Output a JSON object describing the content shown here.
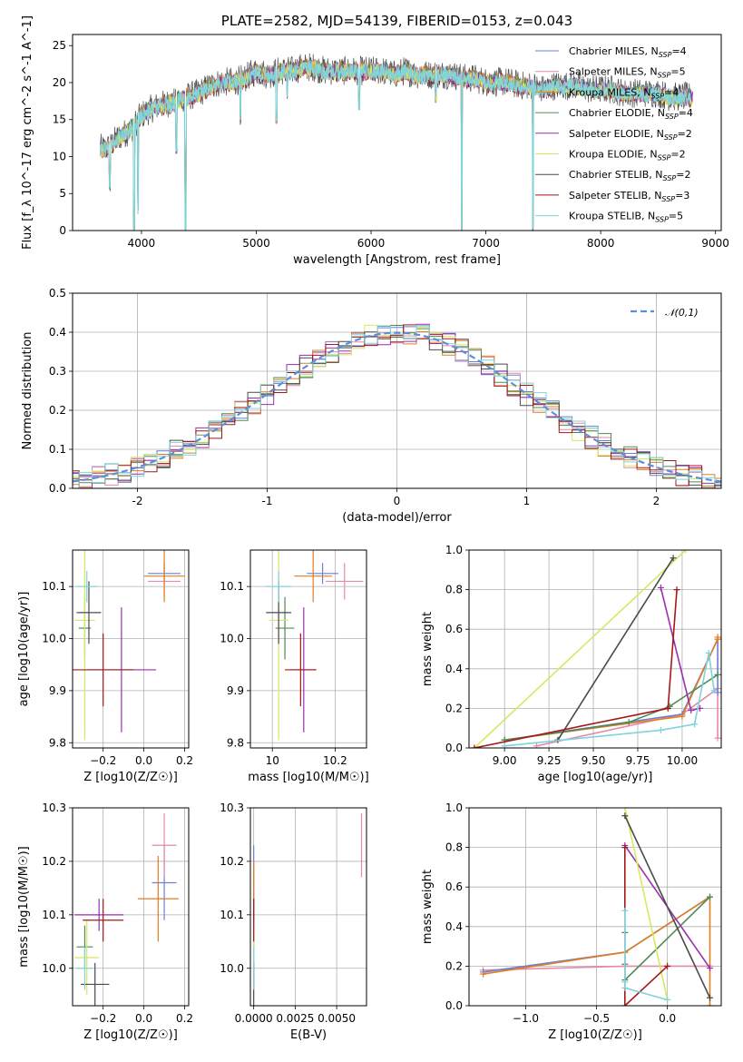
{
  "chart_data": [
    {
      "id": "spectrum",
      "type": "line",
      "title": "PLATE=2582, MJD=54139, FIBERID=0153, z=0.043",
      "xlabel": "wavelength [Angstrom, rest frame]",
      "ylabel": "Flux [f_λ 10^-17 erg cm^-2 s^-1 A^-1]",
      "xlim": [
        3400,
        9050
      ],
      "ylim": [
        0,
        26.5
      ],
      "xticks": [
        4000,
        5000,
        6000,
        7000,
        8000,
        9000
      ],
      "yticks": [
        0,
        5,
        10,
        15,
        20,
        25
      ],
      "grid": false,
      "legend_position": "upper-right",
      "legend": [
        {
          "name": "Chabrier MILES, N_SSP=4",
          "color": "#6a7fd1"
        },
        {
          "name": "Salpeter MILES, N_SSP=5",
          "color": "#e58aa8"
        },
        {
          "name": "Kroupa MILES, N_SSP=4",
          "color": "#e07d20"
        },
        {
          "name": "Chabrier ELODIE, N_SSP=4",
          "color": "#4f8a5a"
        },
        {
          "name": "Salpeter ELODIE, N_SSP=2",
          "color": "#9b2fae"
        },
        {
          "name": "Kroupa ELODIE, N_SSP=2",
          "color": "#d7e860"
        },
        {
          "name": "Chabrier STELIB, N_SSP=2",
          "color": "#4a4a4a"
        },
        {
          "name": "Salpeter STELIB, N_SSP=3",
          "color": "#a51818"
        },
        {
          "name": "Kroupa STELIB, N_SSP=5",
          "color": "#7fd3da"
        }
      ],
      "continuum": {
        "x": [
          3640,
          3700,
          3800,
          3900,
          4000,
          4100,
          4200,
          4300,
          4400,
          4500,
          4600,
          4700,
          4800,
          4900,
          5000,
          5100,
          5200,
          5300,
          5400,
          5500,
          5600,
          5700,
          5800,
          5900,
          6000,
          6100,
          6200,
          6300,
          6400,
          6500,
          6600,
          6700,
          6800,
          6900,
          7000,
          7100,
          7200,
          7300,
          7400,
          7500,
          7600,
          7700,
          7800,
          7900,
          8000,
          8100,
          8200,
          8300,
          8400,
          8500,
          8600,
          8700,
          8800
        ],
        "y": [
          11,
          11,
          12.5,
          13.5,
          15.5,
          16.5,
          17,
          17.5,
          18,
          18.5,
          19.5,
          20,
          20,
          20.5,
          21.5,
          21,
          21.5,
          21.5,
          22,
          22,
          21.5,
          21.5,
          21.5,
          21.5,
          21.5,
          21.5,
          21,
          21.5,
          21,
          21,
          21,
          21,
          20.5,
          20.5,
          20,
          20,
          20,
          19.5,
          19.5,
          19,
          19.5,
          19.5,
          19.5,
          19,
          19,
          19,
          18.5,
          18.5,
          18.5,
          18.5,
          18,
          18,
          18
        ]
      },
      "absorption_dips": [
        {
          "x": 3725,
          "y": 6
        },
        {
          "x": 3935,
          "y": 0
        },
        {
          "x": 3970,
          "y": 3
        },
        {
          "x": 4305,
          "y": 11
        },
        {
          "x": 4385,
          "y": 0
        },
        {
          "x": 4862,
          "y": 15
        },
        {
          "x": 5175,
          "y": 15
        },
        {
          "x": 5270,
          "y": 18.5
        },
        {
          "x": 5895,
          "y": 17
        },
        {
          "x": 6564,
          "y": 18
        },
        {
          "x": 6790,
          "y": 0
        },
        {
          "x": 7410,
          "y": 0
        }
      ]
    },
    {
      "id": "residual-histogram",
      "type": "line",
      "xlabel": "(data-model)/error",
      "ylabel": "Normed distribution",
      "xlim": [
        -2.5,
        2.5
      ],
      "ylim": [
        0,
        0.5
      ],
      "xticks": [
        -2,
        -1,
        0,
        1,
        2
      ],
      "yticks": [
        0.0,
        0.1,
        0.2,
        0.3,
        0.4,
        0.5
      ],
      "grid": true,
      "legend": [
        {
          "name": "𝒩(0,1)",
          "color": "#5b8fd8"
        }
      ],
      "legend_position": "upper-right",
      "bin_width": 0.1,
      "series_colors": [
        "#6a7fd1",
        "#e58aa8",
        "#e07d20",
        "#4f8a5a",
        "#9b2fae",
        "#d7e860",
        "#4a4a4a",
        "#a51818",
        "#7fd3da"
      ]
    },
    {
      "id": "age-vs-Z",
      "type": "scatter",
      "xlabel": "Z [log10(Z/Z☉)]",
      "ylabel": "age [log10(age/yr)]",
      "xlim": [
        -0.35,
        0.22
      ],
      "ylim": [
        9.79,
        10.17
      ],
      "xticks": [
        -0.2,
        0.0,
        0.2
      ],
      "xtick_labels": [
        "−0.2",
        "0.0",
        "0.2"
      ],
      "yticks": [
        9.8,
        9.9,
        10.0,
        10.1
      ],
      "grid": true,
      "points": [
        {
          "x": 0.1,
          "y": 10.125,
          "xerr": 0.08,
          "yerr": 0.02,
          "color": "#6a7fd1"
        },
        {
          "x": 0.1,
          "y": 10.11,
          "xerr": 0.08,
          "yerr": 0.035,
          "color": "#e58aa8"
        },
        {
          "x": 0.1,
          "y": 10.12,
          "xerr": 0.1,
          "yerr": 0.05,
          "color": "#e07d20"
        },
        {
          "x": -0.29,
          "y": 10.02,
          "xerr": 0.03,
          "yerr": 0.06,
          "color": "#4f8a5a"
        },
        {
          "x": -0.11,
          "y": 9.94,
          "xerr": 0.17,
          "yerr": 0.12,
          "color": "#9b2fae"
        },
        {
          "x": -0.29,
          "y": 10.035,
          "xerr": 0.05,
          "yerr": 0.23,
          "color": "#d7e860"
        },
        {
          "x": -0.27,
          "y": 10.05,
          "xerr": 0.06,
          "yerr": 0.06,
          "color": "#4a4a4a"
        },
        {
          "x": -0.2,
          "y": 9.94,
          "xerr": 0.15,
          "yerr": 0.07,
          "color": "#a51818"
        },
        {
          "x": -0.28,
          "y": 10.1,
          "xerr": 0.05,
          "yerr": 0.03,
          "color": "#7fd3da"
        }
      ]
    },
    {
      "id": "age-vs-mass",
      "type": "scatter",
      "xlabel": "mass [log10(M/M☉)]",
      "xlim": [
        9.93,
        10.3
      ],
      "ylim": [
        9.79,
        10.17
      ],
      "xticks": [
        10.0,
        10.2
      ],
      "yticks": [
        9.8,
        9.9,
        10.0,
        10.1
      ],
      "grid": true,
      "points": [
        {
          "x": 10.16,
          "y": 10.125,
          "xerr": 0.05,
          "yerr": 0.02,
          "color": "#6a7fd1"
        },
        {
          "x": 10.23,
          "y": 10.11,
          "xerr": 0.06,
          "yerr": 0.035,
          "color": "#e58aa8"
        },
        {
          "x": 10.13,
          "y": 10.12,
          "xerr": 0.06,
          "yerr": 0.05,
          "color": "#e07d20"
        },
        {
          "x": 10.04,
          "y": 10.02,
          "xerr": 0.03,
          "yerr": 0.06,
          "color": "#4f8a5a"
        },
        {
          "x": 10.1,
          "y": 9.94,
          "xerr": 0.04,
          "yerr": 0.12,
          "color": "#9b2fae"
        },
        {
          "x": 10.02,
          "y": 10.035,
          "xerr": 0.03,
          "yerr": 0.23,
          "color": "#d7e860"
        },
        {
          "x": 10.02,
          "y": 10.05,
          "xerr": 0.04,
          "yerr": 0.06,
          "color": "#4a4a4a"
        },
        {
          "x": 10.09,
          "y": 9.94,
          "xerr": 0.05,
          "yerr": 0.07,
          "color": "#a51818"
        },
        {
          "x": 10.02,
          "y": 10.1,
          "xerr": 0.04,
          "yerr": 0.03,
          "color": "#7fd3da"
        }
      ]
    },
    {
      "id": "massweight-vs-age",
      "type": "line",
      "xlabel": "age [log10(age/yr)]",
      "ylabel": "mass weight",
      "xlim": [
        8.8,
        10.22
      ],
      "ylim": [
        0.0,
        1.0
      ],
      "xticks": [
        9.0,
        9.25,
        9.5,
        9.75,
        10.0
      ],
      "xtick_labels": [
        "9.00",
        "9.25",
        "9.50",
        "9.75",
        "10.00"
      ],
      "yticks": [
        0.0,
        0.2,
        0.4,
        0.6,
        0.8,
        1.0
      ],
      "grid": true,
      "series": [
        {
          "color": "#e58aa8",
          "x": [
            9.18,
            10.0,
            10.2,
            10.2
          ],
          "y": [
            0.01,
            0.17,
            0.3,
            0.05
          ]
        },
        {
          "color": "#6a7fd1",
          "x": [
            9.0,
            10.0,
            10.2,
            10.2
          ],
          "y": [
            0.04,
            0.17,
            0.55,
            0.28
          ]
        },
        {
          "color": "#e07d20",
          "x": [
            9.0,
            10.0,
            10.2,
            10.2
          ],
          "y": [
            0.04,
            0.16,
            0.55,
            0.56
          ]
        },
        {
          "color": "#4f8a5a",
          "x": [
            9.0,
            9.7,
            9.93,
            10.2
          ],
          "y": [
            0.04,
            0.13,
            0.21,
            0.37
          ]
        },
        {
          "color": "#9b2fae",
          "x": [
            9.88,
            10.05,
            10.1
          ],
          "y": [
            0.81,
            0.19,
            0.2
          ]
        },
        {
          "color": "#d7e860",
          "x": [
            8.83,
            10.02
          ],
          "y": [
            0.0,
            1.0
          ]
        },
        {
          "color": "#4a4a4a",
          "x": [
            9.3,
            9.95
          ],
          "y": [
            0.04,
            0.96
          ]
        },
        {
          "color": "#a51818",
          "x": [
            8.83,
            9.92,
            9.97
          ],
          "y": [
            0.0,
            0.2,
            0.8
          ]
        },
        {
          "color": "#7fd3da",
          "x": [
            9.0,
            9.88,
            10.07,
            10.15,
            10.18
          ],
          "y": [
            0.01,
            0.09,
            0.12,
            0.48,
            0.29
          ]
        }
      ]
    },
    {
      "id": "mass-vs-Z",
      "type": "scatter",
      "xlabel": "Z [log10(Z/Z☉)]",
      "ylabel": "mass [log10(M/M☉)]",
      "xlim": [
        -0.35,
        0.22
      ],
      "ylim": [
        9.93,
        10.3
      ],
      "xticks": [
        -0.2,
        0.0,
        0.2
      ],
      "xtick_labels": [
        "−0.2",
        "0.0",
        "0.2"
      ],
      "yticks": [
        10.0,
        10.1,
        10.2,
        10.3
      ],
      "grid": true,
      "points": [
        {
          "x": 0.1,
          "y": 10.16,
          "xerr": 0.06,
          "yerr": 0.07,
          "color": "#6a7fd1"
        },
        {
          "x": 0.1,
          "y": 10.23,
          "xerr": 0.06,
          "yerr": 0.06,
          "color": "#e58aa8"
        },
        {
          "x": 0.07,
          "y": 10.13,
          "xerr": 0.1,
          "yerr": 0.08,
          "color": "#e07d20"
        },
        {
          "x": -0.29,
          "y": 10.04,
          "xerr": 0.04,
          "yerr": 0.04,
          "color": "#4f8a5a"
        },
        {
          "x": -0.22,
          "y": 10.1,
          "xerr": 0.12,
          "yerr": 0.03,
          "color": "#9b2fae"
        },
        {
          "x": -0.28,
          "y": 10.02,
          "xerr": 0.06,
          "yerr": 0.07,
          "color": "#d7e860"
        },
        {
          "x": -0.24,
          "y": 9.97,
          "xerr": 0.07,
          "yerr": 0.04,
          "color": "#4a4a4a"
        },
        {
          "x": -0.2,
          "y": 10.09,
          "xerr": 0.1,
          "yerr": 0.04,
          "color": "#a51818"
        },
        {
          "x": -0.29,
          "y": 10.0,
          "xerr": 0.04,
          "yerr": 0.04,
          "color": "#7fd3da"
        }
      ]
    },
    {
      "id": "mass-vs-EBV",
      "type": "scatter",
      "xlabel": "E(B-V)",
      "xlim": [
        -0.0002,
        0.0068
      ],
      "ylim": [
        9.93,
        10.3
      ],
      "xticks": [
        0.0,
        0.0025,
        0.005
      ],
      "xtick_labels": [
        "0.0000",
        "0.0025",
        "0.0050"
      ],
      "yticks": [
        10.0,
        10.1,
        10.2,
        10.3
      ],
      "grid": true,
      "points": [
        {
          "x": 0.0,
          "y": 10.16,
          "yerr": 0.07,
          "color": "#6a7fd1"
        },
        {
          "x": 0.0065,
          "y": 10.23,
          "yerr": 0.06,
          "color": "#e58aa8"
        },
        {
          "x": 0.0,
          "y": 10.13,
          "yerr": 0.07,
          "color": "#e07d20"
        },
        {
          "x": 0.0,
          "y": 10.04,
          "yerr": 0.04,
          "color": "#4f8a5a"
        },
        {
          "x": 0.0,
          "y": 10.1,
          "yerr": 0.03,
          "color": "#9b2fae"
        },
        {
          "x": 0.0,
          "y": 10.02,
          "yerr": 0.07,
          "color": "#d7e860"
        },
        {
          "x": 0.0,
          "y": 9.97,
          "yerr": 0.04,
          "color": "#4a4a4a"
        },
        {
          "x": 0.0,
          "y": 10.09,
          "yerr": 0.04,
          "color": "#a51818"
        },
        {
          "x": 0.0,
          "y": 10.0,
          "yerr": 0.04,
          "color": "#7fd3da"
        }
      ]
    },
    {
      "id": "massweight-vs-Z",
      "type": "line",
      "xlabel": "Z [log10(Z/Z☉)]",
      "ylabel": "mass weight",
      "xlim": [
        -1.4,
        0.38
      ],
      "ylim": [
        0.0,
        1.0
      ],
      "xticks": [
        -1.0,
        -0.5,
        0.0
      ],
      "xtick_labels": [
        "−1.0",
        "−0.5",
        "0.0"
      ],
      "yticks": [
        0.0,
        0.2,
        0.4,
        0.6,
        0.8,
        1.0
      ],
      "grid": true,
      "series": [
        {
          "color": "#e58aa8",
          "x": [
            -1.3,
            -0.3,
            0.3
          ],
          "y": [
            0.18,
            0.2,
            0.2
          ]
        },
        {
          "color": "#6a7fd1",
          "x": [
            -1.3,
            -0.3,
            0.3
          ],
          "y": [
            0.17,
            0.27,
            0.55
          ]
        },
        {
          "color": "#e07d20",
          "x": [
            -1.3,
            -0.3,
            0.3,
            0.3
          ],
          "y": [
            0.16,
            0.27,
            0.55,
            0.0
          ]
        },
        {
          "color": "#4f8a5a",
          "x": [
            -0.3,
            -0.3,
            -0.3,
            0.3
          ],
          "y": [
            0.37,
            0.21,
            0.13,
            0.55
          ]
        },
        {
          "color": "#9b2fae",
          "x": [
            -0.3,
            0.3
          ],
          "y": [
            0.81,
            0.19
          ]
        },
        {
          "color": "#d7e860",
          "x": [
            -0.3,
            0.0
          ],
          "y": [
            1.0,
            0.03
          ]
        },
        {
          "color": "#4a4a4a",
          "x": [
            -0.3,
            0.3
          ],
          "y": [
            0.96,
            0.04
          ]
        },
        {
          "color": "#a51818",
          "x": [
            -0.3,
            -0.3,
            0.0
          ],
          "y": [
            0.8,
            0.0,
            0.2
          ]
        },
        {
          "color": "#7fd3da",
          "x": [
            -0.3,
            -0.3,
            -0.3,
            0.0
          ],
          "y": [
            0.48,
            0.12,
            0.09,
            0.03
          ]
        }
      ]
    }
  ]
}
